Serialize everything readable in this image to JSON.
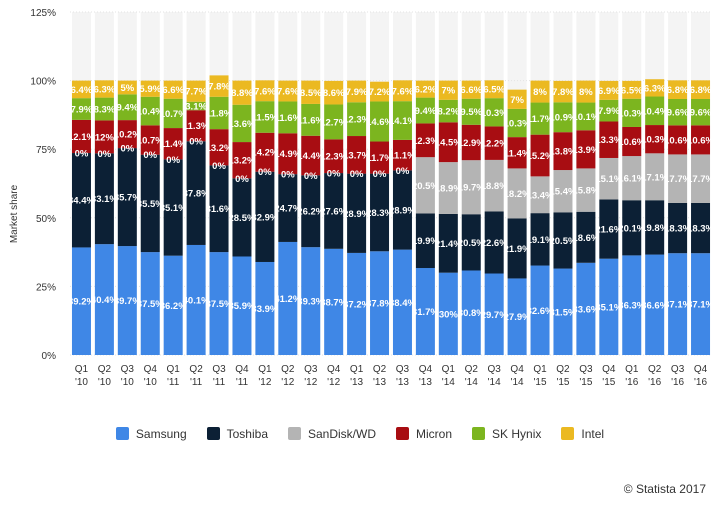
{
  "chart_data": {
    "type": "bar",
    "stacked": true,
    "ylabel": "Market share",
    "ylim": [
      0,
      125
    ],
    "yticks": [
      "0%",
      "25%",
      "50%",
      "75%",
      "100%",
      "125%"
    ],
    "categories": [
      [
        "Q1",
        "'10"
      ],
      [
        "Q2",
        "'10"
      ],
      [
        "Q3",
        "'10"
      ],
      [
        "Q4",
        "'10"
      ],
      [
        "Q1",
        "'11"
      ],
      [
        "Q2",
        "'11"
      ],
      [
        "Q3",
        "'11"
      ],
      [
        "Q4",
        "'11"
      ],
      [
        "Q1",
        "'12"
      ],
      [
        "Q2",
        "'12"
      ],
      [
        "Q3",
        "'12"
      ],
      [
        "Q4",
        "'12"
      ],
      [
        "Q1",
        "'13"
      ],
      [
        "Q2",
        "'13"
      ],
      [
        "Q3",
        "'13"
      ],
      [
        "Q4",
        "'13"
      ],
      [
        "Q1",
        "'14"
      ],
      [
        "Q2",
        "'14"
      ],
      [
        "Q3",
        "'14"
      ],
      [
        "Q4",
        "'14"
      ],
      [
        "Q1",
        "'15"
      ],
      [
        "Q2",
        "'15"
      ],
      [
        "Q3",
        "'15"
      ],
      [
        "Q4",
        "'15"
      ],
      [
        "Q1",
        "'16"
      ],
      [
        "Q2",
        "'16"
      ],
      [
        "Q3",
        "'16"
      ],
      [
        "Q4",
        "'16"
      ]
    ],
    "series": [
      {
        "name": "Samsung",
        "color": "#3f87e6",
        "values": [
          39.2,
          40.4,
          39.7,
          37.5,
          36.2,
          40.1,
          37.5,
          35.9,
          33.9,
          41.2,
          39.3,
          38.7,
          37.2,
          37.8,
          38.4,
          31.7,
          30,
          30.8,
          29.7,
          27.9,
          32.6,
          31.5,
          33.6,
          35.1,
          36.3,
          36.6,
          37.1,
          37.1
        ],
        "labels": [
          "39.2%",
          "40.4%",
          "39.7%",
          "37.5%",
          "36.2%",
          "40.1%",
          "37.5%",
          "35.9%",
          "33.9%",
          "41.2%",
          "39.3%",
          "38.7%",
          "37.2%",
          "37.8%",
          "38.4%",
          "31.7%",
          "30%",
          "30.8%",
          "29.7%",
          "27.9%",
          "32.6%",
          "31.5%",
          "33.6%",
          "35.1%",
          "36.3%",
          "36.6%",
          "37.1%",
          "37.1%"
        ]
      },
      {
        "name": "Toshiba",
        "color": "#0c2035",
        "values": [
          34.4,
          33.1,
          35.7,
          35.5,
          35.1,
          37.8,
          31.6,
          28.5,
          32.9,
          24.7,
          26.2,
          27.6,
          28.9,
          28.3,
          28.9,
          19.9,
          21.4,
          20.5,
          22.6,
          21.9,
          19.1,
          20.5,
          18.6,
          21.6,
          20.1,
          19.8,
          18.3,
          18.3
        ],
        "labels": [
          "34.4%",
          "33.1%",
          "35.7%",
          "35.5%",
          "35.1%",
          "37.8%",
          "31.6%",
          "28.5%",
          "32.9%",
          "24.7%",
          "26.2%",
          "27.6%",
          "28.9%",
          "28.3%",
          "28.9%",
          "19.9%",
          "21.4%",
          "20.5%",
          "22.6%",
          "21.9%",
          "19.1%",
          "20.5%",
          "18.6%",
          "21.6%",
          "20.1%",
          "19.8%",
          "18.3%",
          "18.3%"
        ]
      },
      {
        "name": "SanDisk/WD",
        "color": "#b4b4b4",
        "values": [
          0,
          0,
          0,
          0,
          0,
          0,
          0,
          0,
          0,
          0,
          0,
          0,
          0,
          0,
          0,
          20.5,
          18.9,
          19.7,
          18.8,
          18.2,
          13.4,
          15.4,
          15.8,
          15.1,
          16.1,
          17.1,
          17.7,
          17.7
        ],
        "labels": [
          "0%",
          "0%",
          "0%",
          "0%",
          "0%",
          "0%",
          "0%",
          "0%",
          "0%",
          "0%",
          "0%",
          "0%",
          "0%",
          "0%",
          "0%",
          "20.5%",
          "18.9%",
          "19.7%",
          "18.8%",
          "18.2%",
          "13.4%",
          "15.4%",
          "15.8%",
          "15.1%",
          "16.1%",
          "17.1%",
          "17.7%",
          "17.7%"
        ]
      },
      {
        "name": "Micron",
        "color": "#a80d12",
        "values": [
          12.1,
          12,
          10.2,
          10.7,
          11.4,
          11.3,
          13.2,
          13.2,
          14.2,
          14.9,
          14.4,
          12.3,
          13.7,
          11.7,
          11.1,
          12.3,
          14.5,
          12.9,
          12.2,
          11.4,
          15.2,
          13.8,
          13.9,
          13.3,
          10.6,
          10.3,
          10.6,
          10.6
        ],
        "labels": [
          "12.1%",
          "12%",
          "10.2%",
          "10.7%",
          "11.4%",
          "11.3%",
          "13.2%",
          "13.2%",
          "14.2%",
          "14.9%",
          "14.4%",
          "12.3%",
          "13.7%",
          "11.7%",
          "11.1%",
          "12.3%",
          "14.5%",
          "12.9%",
          "12.2%",
          "11.4%",
          "15.2%",
          "13.8%",
          "13.9%",
          "13.3%",
          "10.6%",
          "10.3%",
          "10.6%",
          "10.6%"
        ]
      },
      {
        "name": "SK Hynix",
        "color": "#7cb51f",
        "values": [
          7.9,
          8.3,
          9.4,
          10.4,
          10.7,
          3.1,
          11.8,
          13.6,
          11.5,
          11.6,
          11.6,
          12.7,
          12.3,
          14.6,
          14.1,
          9.4,
          8.2,
          9.5,
          10.3,
          10.3,
          11.7,
          10.9,
          10.1,
          7.9,
          10.3,
          10.4,
          9.6,
          9.6
        ],
        "labels": [
          "7.9%",
          "8.3%",
          "9.4%",
          "10.4%",
          "10.7%",
          "3.1%",
          "11.8%",
          "13.6%",
          "11.5%",
          "11.6%",
          "11.6%",
          "12.7%",
          "12.3%",
          "14.6%",
          "14.1%",
          "9.4%",
          "8.2%",
          "9.5%",
          "10.3%",
          "10.3%",
          "11.7%",
          "10.9%",
          "10.1%",
          "7.9%",
          "10.3%",
          "10.4%",
          "9.6%",
          "9.6%"
        ]
      },
      {
        "name": "Intel",
        "color": "#ebb921",
        "values": [
          6.4,
          6.3,
          5,
          5.9,
          6.6,
          7.7,
          7.8,
          8.8,
          7.6,
          7.6,
          8.5,
          8.6,
          7.9,
          7.2,
          7.6,
          6.2,
          7,
          6.6,
          6.5,
          7,
          8,
          7.8,
          8,
          6.9,
          6.5,
          6.3,
          6.8,
          6.8
        ],
        "labels": [
          "6.4%",
          "6.3%",
          "5%",
          "5.9%",
          "6.6%",
          "7.7%",
          "7.8%",
          "8.8%",
          "7.6%",
          "7.6%",
          "8.5%",
          "8.6%",
          "7.9%",
          "7.2%",
          "7.6%",
          "6.2%",
          "7%",
          "6.6%",
          "6.5%",
          "7%",
          "8%",
          "7.8%",
          "8%",
          "6.9%",
          "6.5%",
          "6.3%",
          "6.8%",
          "6.8%"
        ]
      }
    ],
    "grid": true,
    "legend_position": "bottom"
  },
  "credit": "© Statista 2017"
}
